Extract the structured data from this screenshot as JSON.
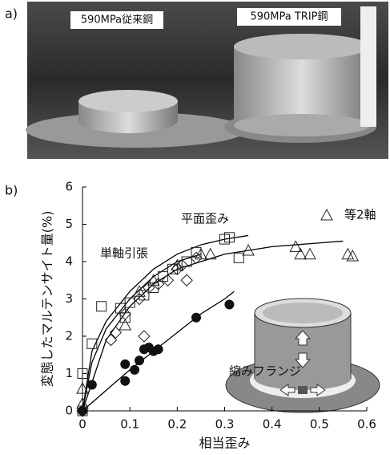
{
  "panel_a": {
    "label": "a)",
    "left_caption": "590MPa従来鋼",
    "right_caption": "590MPa TRIP鋼"
  },
  "chart_data": {
    "type": "scatter",
    "panel_label": "b)",
    "x_label": "相当歪み",
    "y_label": "変態したマルテンサイト量(%)",
    "xlim": [
      0,
      0.6
    ],
    "ylim": [
      0,
      6
    ],
    "xticks": [
      0,
      0.1,
      0.2,
      0.3,
      0.4,
      0.5,
      0.6
    ],
    "yticks": [
      0,
      1,
      2,
      3,
      4,
      5,
      6
    ],
    "series": [
      {
        "name": "平面歪み",
        "marker": "square",
        "color": "#222",
        "x": [
          0,
          0,
          0.02,
          0.04,
          0.08,
          0.09,
          0.1,
          0.13,
          0.15,
          0.17,
          0.19,
          0.22,
          0.24,
          0.3,
          0.31,
          0.33
        ],
        "values": [
          0,
          1,
          1.8,
          2.8,
          2.75,
          2.5,
          2.9,
          3.1,
          3.3,
          3.6,
          3.8,
          4.0,
          4.25,
          4.6,
          4.65,
          4.1
        ]
      },
      {
        "name": "単軸引張",
        "marker": "diamond",
        "color": "#222",
        "x": [
          0,
          0.06,
          0.07,
          0.09,
          0.12,
          0.13,
          0.14,
          0.16,
          0.18,
          0.2,
          0.21,
          0.22,
          0.24
        ],
        "values": [
          0,
          1.9,
          2.1,
          2.6,
          3.0,
          2.0,
          3.3,
          3.4,
          3.5,
          3.8,
          3.9,
          3.5,
          4.1
        ]
      },
      {
        "name": "等2軸",
        "marker": "triangle",
        "color": "#222",
        "x": [
          0,
          0,
          0.09,
          0.12,
          0.15,
          0.2,
          0.25,
          0.27,
          0.35,
          0.45,
          0.46,
          0.48,
          0.56,
          0.57
        ],
        "values": [
          0.2,
          0.6,
          2.3,
          3.2,
          3.5,
          3.9,
          4.2,
          4.2,
          4.3,
          4.4,
          4.2,
          4.2,
          4.2,
          4.15
        ]
      },
      {
        "name": "縮みフランジ",
        "marker": "circle",
        "color": "#111",
        "x": [
          0,
          0.02,
          0.09,
          0.09,
          0.11,
          0.12,
          0.13,
          0.14,
          0.15,
          0.16,
          0.24,
          0.31
        ],
        "values": [
          0,
          0.7,
          0.8,
          1.25,
          1.1,
          1.35,
          1.65,
          1.7,
          1.6,
          1.65,
          2.5,
          2.85
        ]
      }
    ],
    "curves": [
      {
        "x": [
          0,
          0.02,
          0.05,
          0.1,
          0.15,
          0.2,
          0.25,
          0.3,
          0.35
        ],
        "values": [
          0,
          1.6,
          2.4,
          3.2,
          3.8,
          4.2,
          4.45,
          4.6,
          4.7
        ]
      },
      {
        "x": [
          0,
          0.02,
          0.05,
          0.1,
          0.15,
          0.2,
          0.25
        ],
        "values": [
          0,
          1.3,
          2.2,
          3.0,
          3.6,
          4.0,
          4.2
        ]
      },
      {
        "x": [
          0,
          0.05,
          0.1,
          0.15,
          0.2,
          0.3,
          0.4,
          0.5,
          0.55
        ],
        "values": [
          0,
          1.9,
          2.8,
          3.4,
          3.8,
          4.2,
          4.4,
          4.5,
          4.55
        ]
      },
      {
        "x": [
          0,
          0.05,
          0.1,
          0.15,
          0.2,
          0.25,
          0.3,
          0.32
        ],
        "values": [
          0,
          0.55,
          1.1,
          1.6,
          2.1,
          2.6,
          3.0,
          3.2
        ]
      }
    ]
  }
}
